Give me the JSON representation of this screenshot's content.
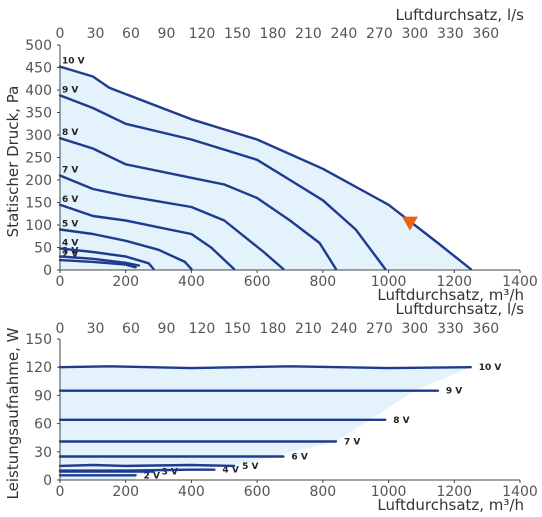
{
  "chart_data": [
    {
      "type": "line",
      "ylabel": "Statischer Druck, Pa",
      "xlabel": "Luftdurchsatz, m³/h",
      "x2label": "Luftdurchsatz, l/s",
      "xlim": [
        0,
        1400
      ],
      "ylim": [
        0,
        500
      ],
      "x_ticks": [
        0,
        200,
        400,
        600,
        800,
        1000,
        1200,
        1400
      ],
      "x2_ticks": [
        0,
        30,
        60,
        90,
        120,
        150,
        180,
        210,
        240,
        270,
        300,
        330,
        360
      ],
      "y_ticks": [
        0,
        50,
        100,
        150,
        200,
        250,
        300,
        350,
        400,
        450,
        500
      ],
      "series": [
        {
          "name": "2 V",
          "points": [
            [
              0,
              22
            ],
            [
              100,
              18
            ],
            [
              200,
              12
            ],
            [
              230,
              6
            ]
          ]
        },
        {
          "name": "3 V",
          "points": [
            [
              0,
              30
            ],
            [
              100,
              25
            ],
            [
              200,
              16
            ],
            [
              240,
              10
            ]
          ]
        },
        {
          "name": "4 V",
          "points": [
            [
              0,
              48
            ],
            [
              100,
              40
            ],
            [
              200,
              30
            ],
            [
              270,
              15
            ],
            [
              285,
              2
            ]
          ]
        },
        {
          "name": "5 V",
          "points": [
            [
              0,
              90
            ],
            [
              100,
              80
            ],
            [
              200,
              65
            ],
            [
              300,
              45
            ],
            [
              380,
              18
            ],
            [
              400,
              2
            ]
          ]
        },
        {
          "name": "6 V",
          "points": [
            [
              0,
              145
            ],
            [
              100,
              120
            ],
            [
              200,
              110
            ],
            [
              300,
              95
            ],
            [
              400,
              80
            ],
            [
              460,
              50
            ],
            [
              530,
              2
            ]
          ]
        },
        {
          "name": "7 V",
          "points": [
            [
              0,
              210
            ],
            [
              100,
              180
            ],
            [
              200,
              165
            ],
            [
              400,
              140
            ],
            [
              500,
              110
            ],
            [
              620,
              40
            ],
            [
              680,
              2
            ]
          ]
        },
        {
          "name": "8 V",
          "points": [
            [
              0,
              293
            ],
            [
              100,
              270
            ],
            [
              200,
              235
            ],
            [
              400,
              205
            ],
            [
              500,
              190
            ],
            [
              600,
              160
            ],
            [
              700,
              110
            ],
            [
              790,
              60
            ],
            [
              840,
              2
            ]
          ]
        },
        {
          "name": "9 V",
          "points": [
            [
              0,
              388
            ],
            [
              100,
              360
            ],
            [
              200,
              325
            ],
            [
              400,
              290
            ],
            [
              600,
              245
            ],
            [
              700,
              200
            ],
            [
              800,
              155
            ],
            [
              900,
              90
            ],
            [
              990,
              2
            ]
          ]
        },
        {
          "name": "10 V",
          "points": [
            [
              0,
              452
            ],
            [
              100,
              430
            ],
            [
              150,
              405
            ],
            [
              400,
              335
            ],
            [
              600,
              290
            ],
            [
              800,
              225
            ],
            [
              1000,
              145
            ],
            [
              1150,
              60
            ],
            [
              1250,
              2
            ]
          ]
        }
      ],
      "operating_point": {
        "x": 1065,
        "y": 103,
        "color": "#e8650f"
      },
      "line_color": "#1f3b8f",
      "fill_color": "#e3f2fb"
    },
    {
      "type": "line",
      "ylabel": "Leistungsaufnahme, W",
      "xlabel": "Luftdurchsatz, m³/h",
      "x2label": "Luftdurchsatz, l/s",
      "xlim": [
        0,
        1400
      ],
      "ylim": [
        0,
        150
      ],
      "x_ticks": [
        0,
        200,
        400,
        600,
        800,
        1000,
        1200,
        1400
      ],
      "x2_ticks": [
        0,
        30,
        60,
        90,
        120,
        150,
        180,
        210,
        240,
        270,
        300,
        330,
        360
      ],
      "y_ticks": [
        0,
        30,
        60,
        90,
        120,
        150
      ],
      "series": [
        {
          "name": "2 V",
          "points": [
            [
              0,
              5
            ],
            [
              230,
              5
            ]
          ]
        },
        {
          "name": "3 V",
          "points": [
            [
              0,
              9
            ],
            [
              100,
              9
            ],
            [
              200,
              9
            ],
            [
              285,
              9
            ]
          ]
        },
        {
          "name": "4 V",
          "points": [
            [
              0,
              10
            ],
            [
              200,
              10
            ],
            [
              400,
              11
            ],
            [
              470,
              11
            ]
          ]
        },
        {
          "name": "5 V",
          "points": [
            [
              0,
              15
            ],
            [
              100,
              16
            ],
            [
              200,
              15
            ],
            [
              400,
              16
            ],
            [
              530,
              15
            ]
          ]
        },
        {
          "name": "6 V",
          "points": [
            [
              0,
              25
            ],
            [
              680,
              25
            ]
          ]
        },
        {
          "name": "7 V",
          "points": [
            [
              0,
              41
            ],
            [
              840,
              41
            ]
          ]
        },
        {
          "name": "8 V",
          "points": [
            [
              0,
              64
            ],
            [
              990,
              64
            ]
          ]
        },
        {
          "name": "9 V",
          "points": [
            [
              0,
              95
            ],
            [
              1150,
              95
            ]
          ]
        },
        {
          "name": "10 V",
          "points": [
            [
              0,
              120
            ],
            [
              150,
              121
            ],
            [
              400,
              119
            ],
            [
              700,
              121
            ],
            [
              1000,
              119
            ],
            [
              1250,
              120
            ]
          ]
        }
      ],
      "line_color": "#1f3b8f",
      "fill_color": "#e3f2fb"
    }
  ]
}
